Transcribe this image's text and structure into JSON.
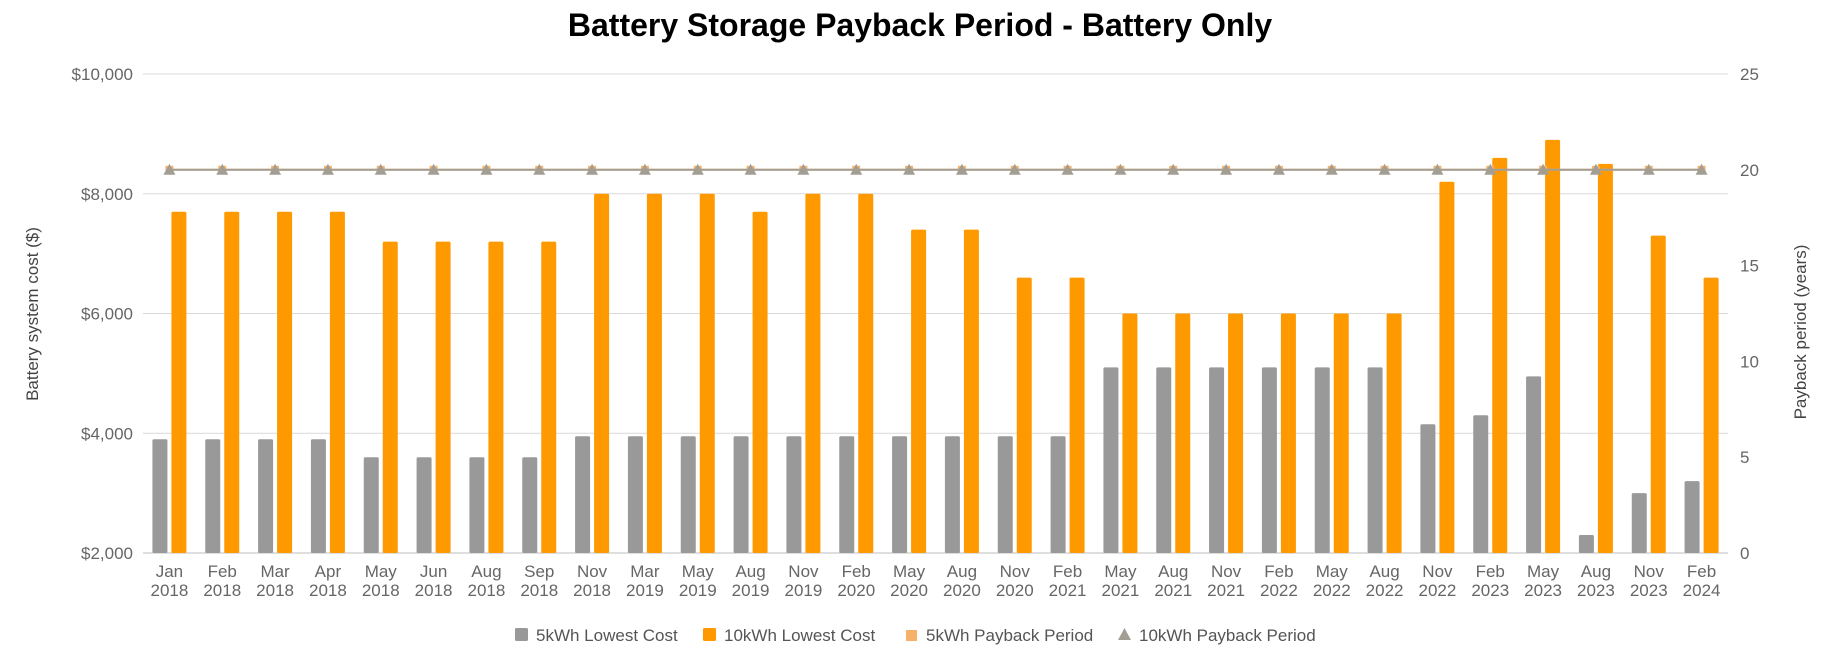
{
  "chart_data": {
    "type": "bar",
    "title": "Battery Storage Payback Period - Battery Only",
    "ylabel": "Battery system cost ($)",
    "y2label": "Payback period (years)",
    "ylim": [
      2000,
      10000
    ],
    "y2lim": [
      0,
      25
    ],
    "yticks": [
      "$2,000",
      "$4,000",
      "$6,000",
      "$8,000",
      "$10,000"
    ],
    "ytick_values": [
      2000,
      4000,
      6000,
      8000,
      10000
    ],
    "y2ticks": [
      "0",
      "5",
      "10",
      "15",
      "20",
      "25"
    ],
    "y2tick_values": [
      0,
      5,
      10,
      15,
      20,
      25
    ],
    "grid": true,
    "legend_position": "bottom",
    "categories": [
      [
        "Jan",
        "2018"
      ],
      [
        "Feb",
        "2018"
      ],
      [
        "Mar",
        "2018"
      ],
      [
        "Apr",
        "2018"
      ],
      [
        "May",
        "2018"
      ],
      [
        "Jun",
        "2018"
      ],
      [
        "Aug",
        "2018"
      ],
      [
        "Sep",
        "2018"
      ],
      [
        "Nov",
        "2018"
      ],
      [
        "Mar",
        "2019"
      ],
      [
        "May",
        "2019"
      ],
      [
        "Aug",
        "2019"
      ],
      [
        "Nov",
        "2019"
      ],
      [
        "Feb",
        "2020"
      ],
      [
        "May",
        "2020"
      ],
      [
        "Aug",
        "2020"
      ],
      [
        "Nov",
        "2020"
      ],
      [
        "Feb",
        "2021"
      ],
      [
        "May",
        "2021"
      ],
      [
        "Aug",
        "2021"
      ],
      [
        "Nov",
        "2021"
      ],
      [
        "Feb",
        "2022"
      ],
      [
        "May",
        "2022"
      ],
      [
        "Aug",
        "2022"
      ],
      [
        "Nov",
        "2022"
      ],
      [
        "Feb",
        "2023"
      ],
      [
        "May",
        "2023"
      ],
      [
        "Aug",
        "2023"
      ],
      [
        "Nov",
        "2023"
      ],
      [
        "Feb",
        "2024"
      ]
    ],
    "series": [
      {
        "name": "5kWh Lowest Cost",
        "kind": "bar",
        "axis": "left",
        "color": "#999999",
        "values": [
          3900,
          3900,
          3900,
          3900,
          3600,
          3600,
          3600,
          3600,
          3950,
          3950,
          3950,
          3950,
          3950,
          3950,
          3950,
          3950,
          3950,
          3950,
          5100,
          5100,
          5100,
          5100,
          5100,
          5100,
          4150,
          4300,
          4950,
          2300,
          3000,
          3200
        ]
      },
      {
        "name": "10kWh Lowest Cost",
        "kind": "bar",
        "axis": "left",
        "color": "#ff9900",
        "values": [
          7700,
          7700,
          7700,
          7700,
          7200,
          7200,
          7200,
          7200,
          8000,
          8000,
          8000,
          7700,
          8000,
          8000,
          7400,
          7400,
          6600,
          6600,
          6000,
          6000,
          6000,
          6000,
          6000,
          6000,
          8200,
          8600,
          8900,
          8500,
          7300,
          6600
        ]
      },
      {
        "name": "5kWh Payback Period",
        "kind": "line",
        "axis": "right",
        "color": "#f6b26b",
        "marker": "square",
        "values": [
          20,
          20,
          20,
          20,
          20,
          20,
          20,
          20,
          20,
          20,
          20,
          20,
          20,
          20,
          20,
          20,
          20,
          20,
          20,
          20,
          20,
          20,
          20,
          20,
          20,
          20,
          20,
          20,
          20,
          20
        ]
      },
      {
        "name": "10kWh Payback Period",
        "kind": "line",
        "axis": "right",
        "color": "#a39e93",
        "marker": "triangle",
        "values": [
          20,
          20,
          20,
          20,
          20,
          20,
          20,
          20,
          20,
          20,
          20,
          20,
          20,
          20,
          20,
          20,
          20,
          20,
          20,
          20,
          20,
          20,
          20,
          20,
          20,
          20,
          20,
          20,
          20,
          20
        ]
      }
    ]
  }
}
